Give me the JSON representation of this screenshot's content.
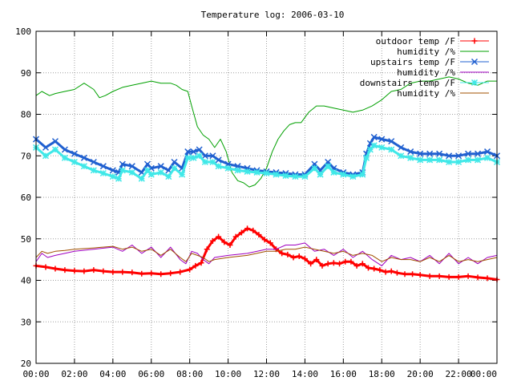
{
  "chart_data": {
    "type": "line",
    "title": "Temperature log: 2006-03-10",
    "xlabel": "",
    "ylabel": "",
    "xlim": [
      0,
      24
    ],
    "ylim": [
      20,
      100
    ],
    "x_ticks": [
      "00:00",
      "02:00",
      "04:00",
      "06:00",
      "08:00",
      "10:00",
      "12:00",
      "14:00",
      "16:00",
      "18:00",
      "20:00",
      "22:00",
      "00:00"
    ],
    "y_ticks": [
      "20",
      "30",
      "40",
      "50",
      "60",
      "70",
      "80",
      "90",
      "100"
    ],
    "grid": true,
    "legend_position": "top-right",
    "series": [
      {
        "name": "outdoor temp /F",
        "color": "#ff0000",
        "marker": "plus",
        "x": [
          0,
          0.5,
          1,
          1.5,
          2,
          2.5,
          3,
          3.5,
          4,
          4.5,
          5,
          5.5,
          6,
          6.5,
          7,
          7.5,
          8,
          8.3,
          8.6,
          8.9,
          9.2,
          9.5,
          9.8,
          10.1,
          10.4,
          10.7,
          11,
          11.3,
          11.6,
          11.9,
          12.2,
          12.5,
          12.8,
          13.1,
          13.4,
          13.7,
          14,
          14.3,
          14.6,
          14.9,
          15.2,
          15.5,
          15.8,
          16.1,
          16.4,
          16.7,
          17,
          17.3,
          17.6,
          17.9,
          18.2,
          18.5,
          18.8,
          19.2,
          19.6,
          20,
          20.5,
          21,
          21.5,
          22,
          22.5,
          23,
          23.5,
          24
        ],
        "y": [
          43.5,
          43.2,
          42.8,
          42.5,
          42.3,
          42.2,
          42.5,
          42.2,
          42.0,
          42.0,
          41.9,
          41.6,
          41.7,
          41.5,
          41.7,
          42.0,
          42.6,
          43.5,
          44.2,
          47.5,
          49.5,
          50.5,
          49.2,
          48.5,
          50.5,
          51.5,
          52.5,
          52.0,
          51.0,
          49.8,
          49.0,
          47.5,
          46.5,
          46.2,
          45.5,
          45.8,
          45.2,
          44.0,
          45.0,
          43.5,
          44.0,
          44.2,
          44.0,
          44.5,
          44.5,
          43.5,
          44.0,
          43.0,
          42.8,
          42.5,
          42.0,
          42.2,
          41.8,
          41.5,
          41.5,
          41.3,
          41.0,
          41.0,
          40.8,
          40.8,
          41.0,
          40.7,
          40.5,
          40.2
        ]
      },
      {
        "name": "humidity /%",
        "color": "#00a000",
        "marker": "none",
        "x": [
          0,
          0.3,
          0.7,
          1,
          1.5,
          2,
          2.5,
          3,
          3.3,
          3.6,
          4,
          4.5,
          5,
          5.5,
          6,
          6.5,
          7,
          7.3,
          7.6,
          7.9,
          8.1,
          8.4,
          8.7,
          9,
          9.3,
          9.6,
          9.9,
          10.2,
          10.5,
          10.8,
          11.1,
          11.4,
          11.7,
          12,
          12.3,
          12.6,
          12.9,
          13.2,
          13.5,
          13.8,
          14.2,
          14.6,
          15,
          15.5,
          16,
          16.5,
          17,
          17.5,
          18,
          18.5,
          19,
          19.5,
          20,
          20.5,
          21,
          21.5,
          22,
          22.5,
          23,
          23.5,
          24
        ],
        "y": [
          84.5,
          85.5,
          84.5,
          85.0,
          85.5,
          86.0,
          87.5,
          86.0,
          84.0,
          84.5,
          85.5,
          86.5,
          87.0,
          87.5,
          88.0,
          87.5,
          87.5,
          87.0,
          86.0,
          85.5,
          82.0,
          77.0,
          75.0,
          74.0,
          72.0,
          74.0,
          71.0,
          66.0,
          64.0,
          63.5,
          62.5,
          63.0,
          64.5,
          67.0,
          71.0,
          74.0,
          76.0,
          77.5,
          78.0,
          78.0,
          80.5,
          82.0,
          82.0,
          81.5,
          81.0,
          80.5,
          81.0,
          82.0,
          83.5,
          85.5,
          86.0,
          87.5,
          88.0,
          88.0,
          88.5,
          89.0,
          88.5,
          87.5,
          87.0,
          88.0,
          88.0
        ]
      },
      {
        "name": "upstairs temp /F",
        "color": "#2060d0",
        "marker": "x",
        "x": [
          0,
          0.5,
          1,
          1.5,
          2,
          2.5,
          3,
          3.5,
          4,
          4.3,
          4.5,
          5,
          5.5,
          5.8,
          6,
          6.5,
          6.9,
          7.2,
          7.6,
          7.9,
          8.2,
          8.5,
          8.8,
          9.2,
          9.5,
          10,
          10.5,
          11,
          11.5,
          12,
          12.5,
          13,
          13.5,
          14,
          14.5,
          14.8,
          15.2,
          15.5,
          16,
          16.5,
          17,
          17.2,
          17.4,
          17.6,
          18,
          18.5,
          19,
          19.5,
          20,
          20.5,
          21,
          21.5,
          22,
          22.5,
          23,
          23.5,
          24
        ],
        "y": [
          74.0,
          72.0,
          73.5,
          71.5,
          70.5,
          69.5,
          68.5,
          67.5,
          66.5,
          66.0,
          68.0,
          67.5,
          66.0,
          68.0,
          67.0,
          67.5,
          66.5,
          68.5,
          67.0,
          71.0,
          71.0,
          71.5,
          70.0,
          70.0,
          69.0,
          68.0,
          67.5,
          67.0,
          66.5,
          66.2,
          66.0,
          65.8,
          65.5,
          65.5,
          68.0,
          66.5,
          68.5,
          67.0,
          66.0,
          65.5,
          66.0,
          70.5,
          73.0,
          74.5,
          74.0,
          73.5,
          72.0,
          71.0,
          70.5,
          70.5,
          70.5,
          70.0,
          70.0,
          70.5,
          70.5,
          71.0,
          70.0
        ]
      },
      {
        "name": "humidity /%",
        "color": "#a000c0",
        "marker": "none",
        "x": [
          0,
          0.3,
          0.6,
          1,
          1.5,
          2,
          3,
          4,
          4.5,
          5,
          5.5,
          6,
          6.5,
          7,
          7.5,
          7.8,
          8.1,
          8.4,
          8.7,
          9.0,
          9.3,
          10,
          11,
          12,
          12.5,
          13,
          13.5,
          14,
          14.5,
          15,
          15.5,
          16,
          16.5,
          17,
          17.5,
          18,
          18.5,
          19,
          19.5,
          20,
          20.5,
          21,
          21.5,
          22,
          22.5,
          23,
          23.5,
          24
        ],
        "y": [
          44.5,
          46.5,
          45.5,
          46.0,
          46.5,
          47.0,
          47.5,
          48.0,
          47.0,
          48.5,
          46.5,
          48.0,
          45.5,
          48.0,
          45.0,
          44.0,
          47.0,
          46.5,
          45.0,
          44.0,
          45.5,
          46.0,
          46.5,
          47.5,
          47.5,
          48.5,
          48.5,
          49.0,
          47.0,
          47.5,
          46.0,
          47.5,
          45.5,
          47.0,
          45.0,
          43.5,
          46.0,
          45.0,
          45.5,
          44.5,
          46.0,
          44.0,
          46.5,
          44.0,
          45.5,
          44.0,
          45.5,
          46.0
        ]
      },
      {
        "name": "downstairs temp /F",
        "color": "#40e8e8",
        "marker": "star",
        "x": [
          0,
          0.5,
          1,
          1.5,
          2,
          2.5,
          3,
          3.5,
          4,
          4.3,
          4.5,
          5,
          5.5,
          5.8,
          6,
          6.5,
          6.9,
          7.2,
          7.6,
          7.9,
          8.2,
          8.5,
          8.8,
          9.2,
          9.5,
          10,
          10.5,
          11,
          11.5,
          12,
          12.5,
          13,
          13.5,
          14,
          14.5,
          14.8,
          15.2,
          15.5,
          16,
          16.5,
          17,
          17.2,
          17.4,
          17.6,
          18,
          18.5,
          19,
          19.5,
          20,
          20.5,
          21,
          21.5,
          22,
          22.5,
          23,
          23.5,
          24
        ],
        "y": [
          72.0,
          70.0,
          71.5,
          69.5,
          68.5,
          67.5,
          66.5,
          65.8,
          65.0,
          64.5,
          66.5,
          66.0,
          64.5,
          66.5,
          65.5,
          66.0,
          65.0,
          67.0,
          65.5,
          69.5,
          69.5,
          70.0,
          68.5,
          68.5,
          67.5,
          67.0,
          66.5,
          66.2,
          66.0,
          65.8,
          65.5,
          65.2,
          65.0,
          65.0,
          67.0,
          65.5,
          67.5,
          66.0,
          65.5,
          65.0,
          65.5,
          69.5,
          71.5,
          72.5,
          72.0,
          71.5,
          70.0,
          69.5,
          69.0,
          69.0,
          69.0,
          68.5,
          68.5,
          69.0,
          69.0,
          69.5,
          68.5
        ]
      },
      {
        "name": "humidity /%",
        "color": "#a05000",
        "marker": "none",
        "x": [
          0,
          0.3,
          0.6,
          1,
          1.5,
          2,
          3,
          4,
          4.5,
          5,
          5.5,
          6,
          6.5,
          7,
          7.5,
          7.8,
          8.1,
          8.4,
          8.7,
          9.0,
          9.3,
          10,
          11,
          12,
          12.5,
          13,
          13.5,
          14,
          14.5,
          15,
          15.5,
          16,
          16.5,
          17,
          17.5,
          18,
          18.5,
          19,
          19.5,
          20,
          20.5,
          21,
          21.5,
          22,
          22.5,
          23,
          23.5,
          24
        ],
        "y": [
          45.5,
          47.0,
          46.5,
          47.0,
          47.2,
          47.5,
          47.8,
          48.2,
          47.5,
          48.0,
          47.0,
          47.5,
          46.0,
          47.5,
          45.5,
          44.5,
          46.5,
          46.0,
          45.5,
          44.5,
          45.0,
          45.5,
          46.0,
          47.0,
          47.0,
          47.5,
          47.5,
          48.0,
          47.5,
          47.0,
          46.5,
          47.0,
          46.0,
          46.5,
          46.0,
          44.5,
          45.5,
          45.0,
          45.0,
          44.5,
          45.5,
          44.5,
          46.0,
          44.5,
          45.0,
          44.5,
          45.0,
          45.5
        ]
      }
    ]
  }
}
